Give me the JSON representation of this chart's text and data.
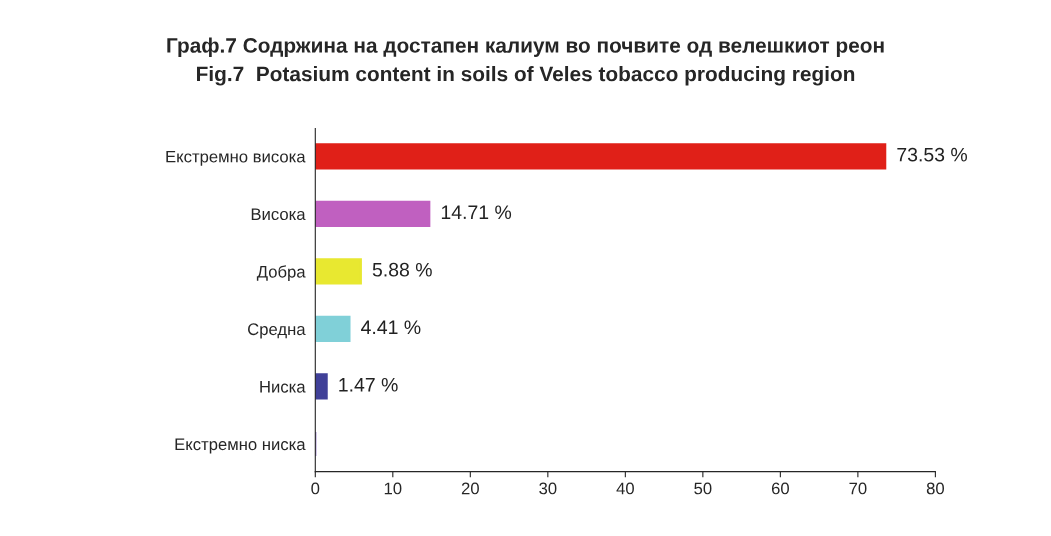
{
  "chart_data": {
    "type": "bar",
    "orientation": "horizontal",
    "title": "Граф.7 Содржина на достапен калиум во почвите од велешкиот реон\nFig.7  Potasium content in soils of Veles tobacco producing region",
    "categories": [
      "Екстремно висока",
      "Висока",
      "Добра",
      "Средна",
      "Ниска",
      "Екстремно ниска"
    ],
    "values": [
      73.53,
      14.71,
      5.88,
      4.41,
      1.47,
      0
    ],
    "colors": [
      "#e02018",
      "#c060c0",
      "#e8e830",
      "#80d0d8",
      "#404098",
      "#8060c0"
    ],
    "value_labels": [
      "73.53 %",
      "14.71 %",
      "5.88 %",
      "4.41 %",
      "1.47 %",
      null
    ],
    "xlim": [
      0,
      80
    ],
    "xticks": [
      0,
      10,
      20,
      30,
      40,
      50,
      60,
      70,
      80
    ],
    "grid": false
  }
}
